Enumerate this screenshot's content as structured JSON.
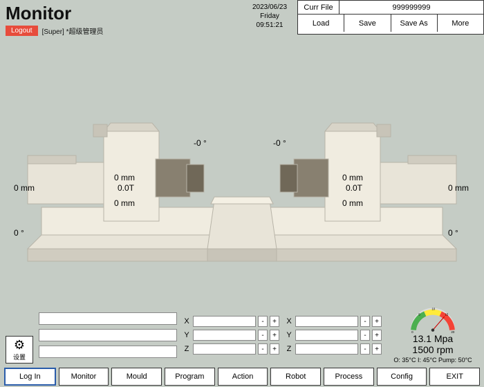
{
  "header": {
    "title": "Monitor",
    "logout": "Logout",
    "user": "[Super] *超级管理员",
    "date": "2023/06/23",
    "day": "Friday",
    "time": "09:51:21"
  },
  "file": {
    "currLabel": "Curr File",
    "currValue": "999999999",
    "buttons": [
      "Load",
      "Save",
      "Save As",
      "More"
    ]
  },
  "machine": {
    "left_outer": "0 mm",
    "left_angle_bottom": "0 °",
    "left_mm_top": "0 mm",
    "left_force": "0.0T",
    "left_mm_bottom": "0 mm",
    "center_left_angle": "-0 °",
    "center_right_angle": "-0 °",
    "right_mm_top": "0 mm",
    "right_force": "0.0T",
    "right_mm_bottom": "0 mm",
    "right_outer": "0 mm",
    "right_angle_bottom": "0 °",
    "colors": {
      "body": "#e8e4d8",
      "body_shade": "#d0ccc0",
      "dark": "#b8b4a8",
      "accent": "#888070"
    }
  },
  "xyz": {
    "left": [
      "X",
      "Y",
      "Z"
    ],
    "right": [
      "X",
      "Y",
      "Z"
    ],
    "plus": "+",
    "minus": "-"
  },
  "gauge": {
    "ticks": [
      "0",
      "5",
      "10",
      "15",
      "20"
    ],
    "pressure": "13.1 Mpa",
    "rpm": "1500 rpm",
    "temps": "O: 35°C  I: 45°C  Pump: 50°C",
    "needle_angle": 60,
    "colors": {
      "green": "#4caf50",
      "yellow": "#ffeb3b",
      "red": "#f44336",
      "bg": "#eee"
    }
  },
  "footer": {
    "buttons": [
      "Log In",
      "Monitor",
      "Mould",
      "Program",
      "Action",
      "Robot",
      "Process",
      "Config",
      "EXIT"
    ],
    "active": 0
  },
  "settings": {
    "label": "设置"
  }
}
